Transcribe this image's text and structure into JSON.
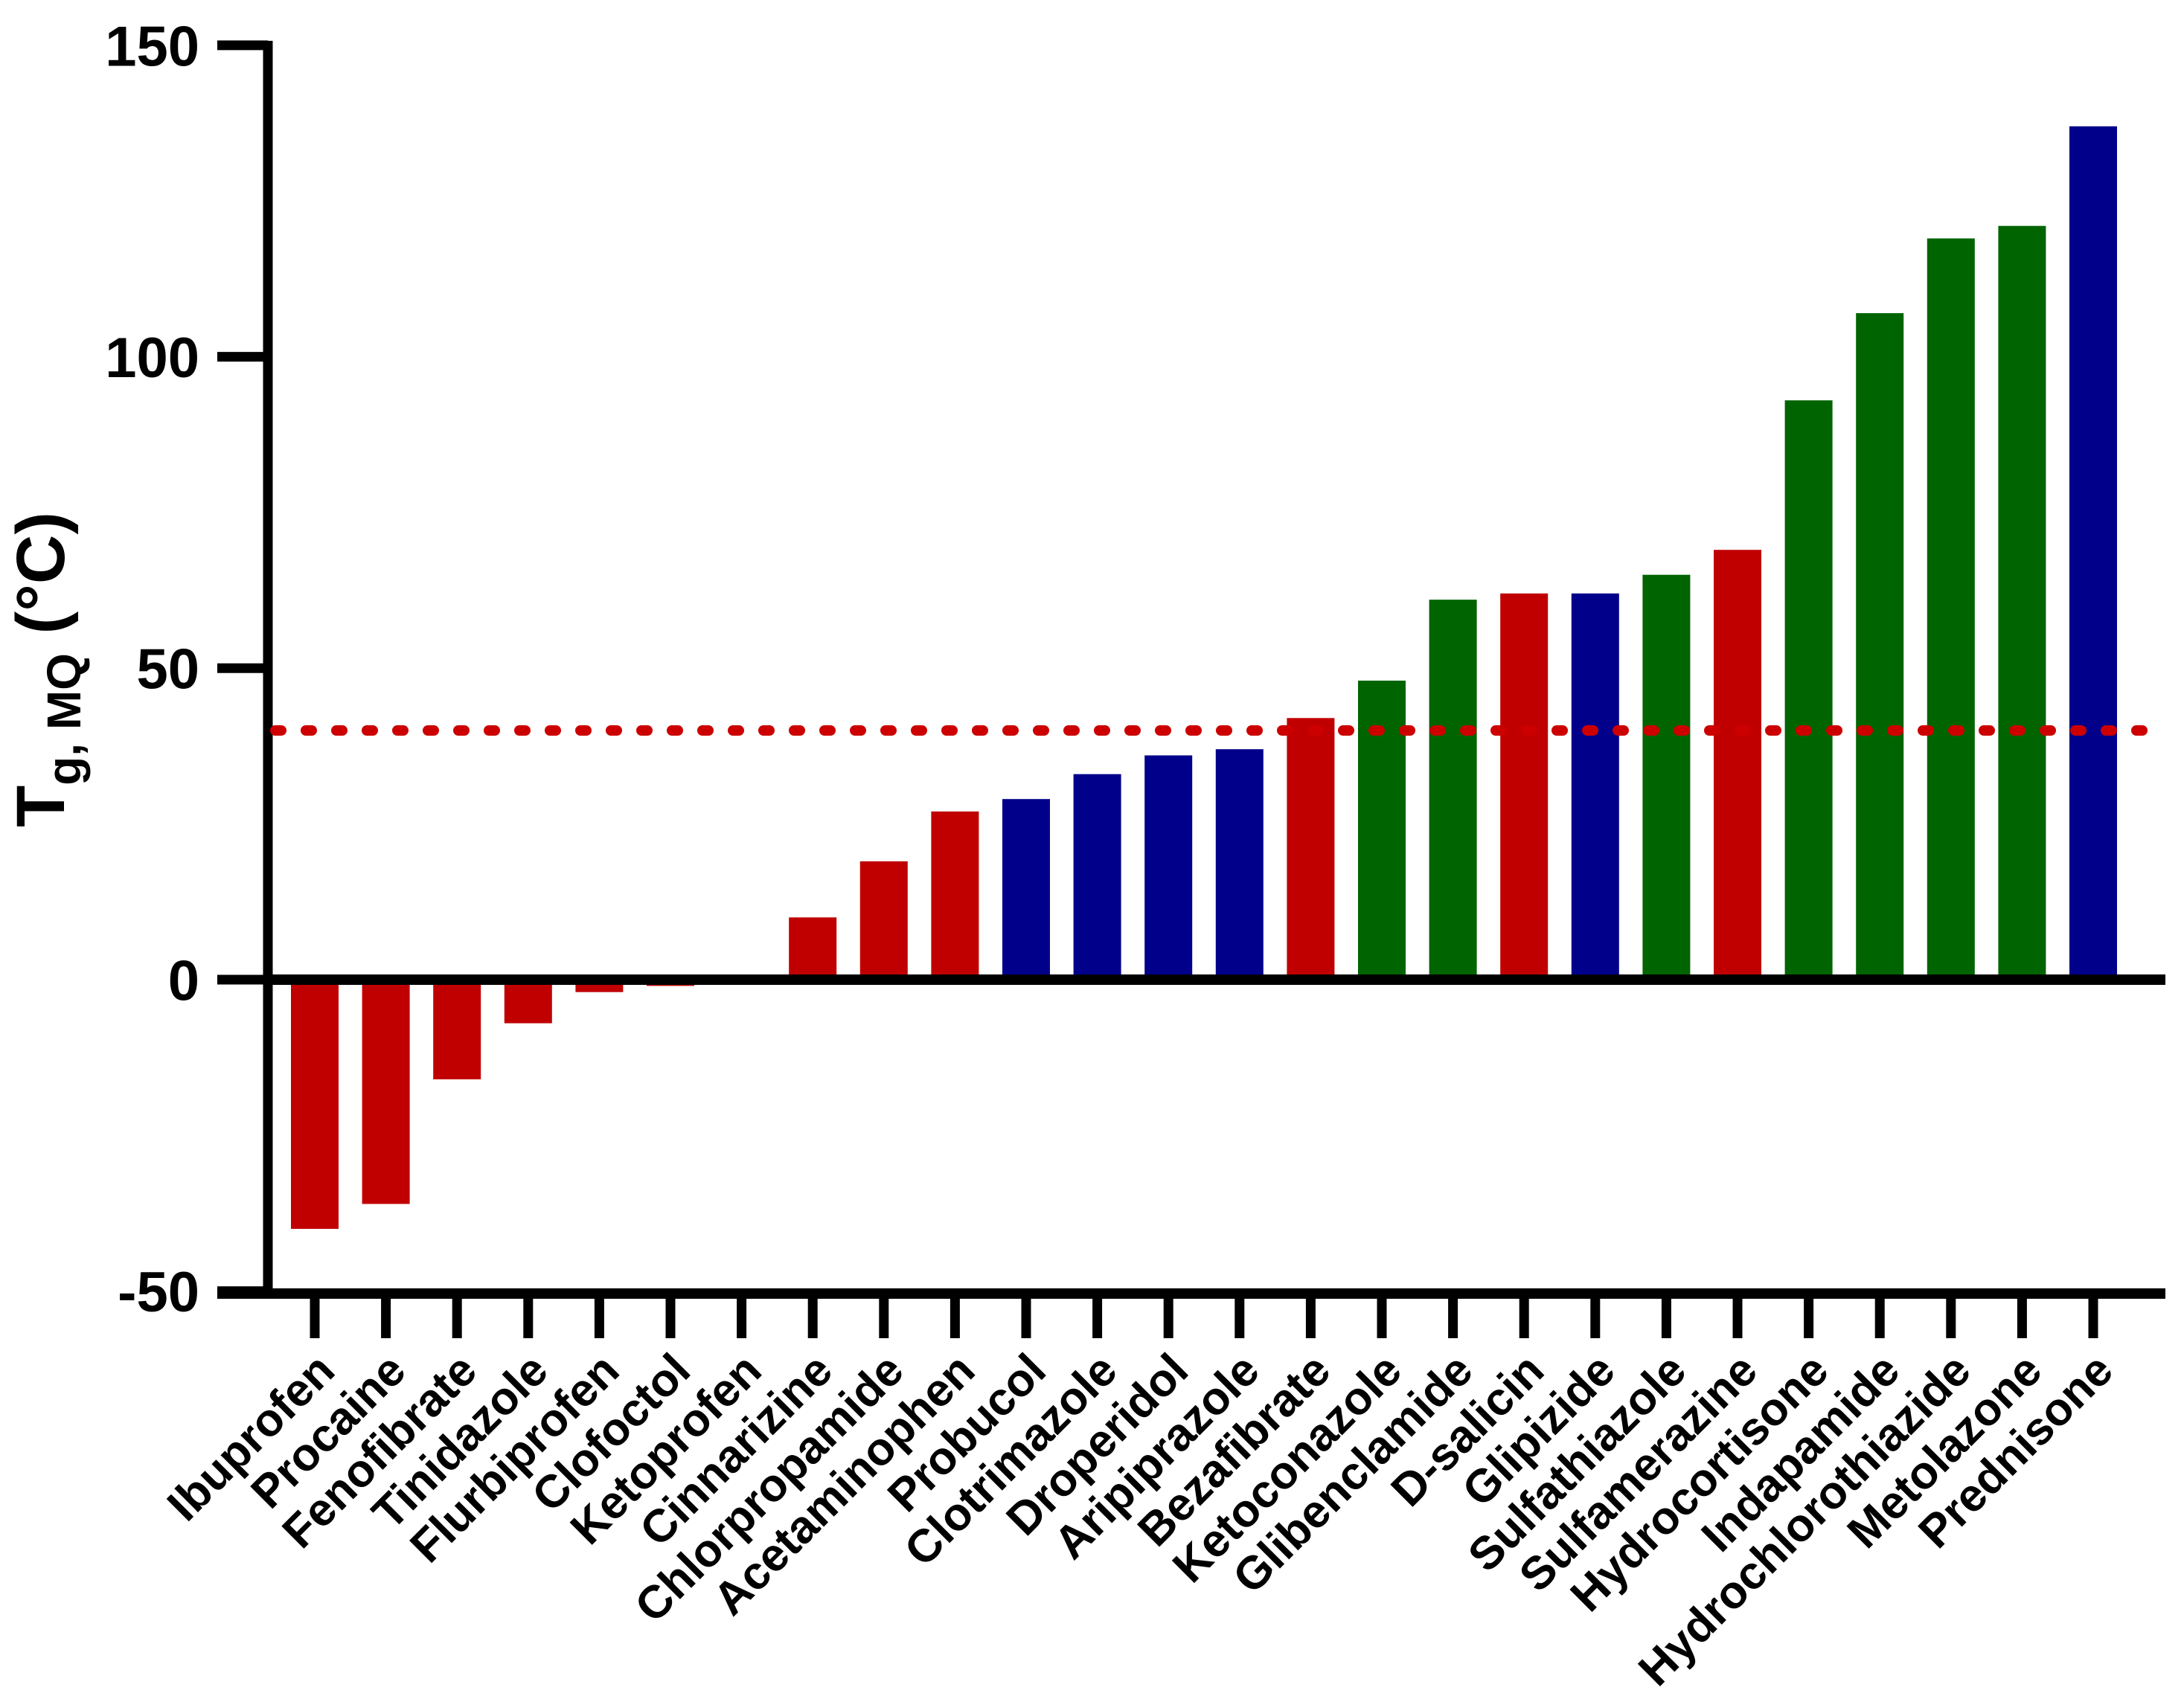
{
  "figure": {
    "background": "#ffffff",
    "axis_color": "#000000",
    "y_axis_title": {
      "main": "T",
      "subscript": "g, MQ",
      "unit": " (°C)"
    },
    "y_tick_labels": [
      "150",
      "100",
      "50",
      "0",
      "-50"
    ]
  },
  "chart_data": {
    "type": "bar",
    "title": "",
    "xlabel": "",
    "ylabel": "Tg, MQ (°C)",
    "ylim": [
      -50,
      150
    ],
    "yticks": [
      150,
      100,
      50,
      0,
      -50
    ],
    "grid": false,
    "legend_position": "none",
    "reference_line": {
      "value": 40,
      "style": "dashed",
      "color": "#cc0000"
    },
    "class_colors": {
      "red": "#c00000",
      "blue": "#00008b",
      "green": "#006400"
    },
    "bars": [
      {
        "label": "Ibuprofen",
        "value": -40,
        "color": "red"
      },
      {
        "label": "Procaine",
        "value": -36,
        "color": "red"
      },
      {
        "label": "Fenofibrate",
        "value": -16,
        "color": "red"
      },
      {
        "label": "Tinidazole",
        "value": -7,
        "color": "red"
      },
      {
        "label": "Flurbiprofen",
        "value": -2,
        "color": "red"
      },
      {
        "label": "Clofoctol",
        "value": -1,
        "color": "red"
      },
      {
        "label": "Ketoprofen",
        "value": 0,
        "color": "red"
      },
      {
        "label": "Cinnarizine",
        "value": 10,
        "color": "red"
      },
      {
        "label": "Chlorpropamide",
        "value": 19,
        "color": "red"
      },
      {
        "label": "Acetaminophen",
        "value": 27,
        "color": "red"
      },
      {
        "label": "Probucol",
        "value": 29,
        "color": "blue"
      },
      {
        "label": "Clotrimazole",
        "value": 33,
        "color": "blue"
      },
      {
        "label": "Droperidol",
        "value": 36,
        "color": "blue"
      },
      {
        "label": "Aripiprazole",
        "value": 37,
        "color": "blue"
      },
      {
        "label": "Bezafibrate",
        "value": 42,
        "color": "red"
      },
      {
        "label": "Ketoconazole",
        "value": 48,
        "color": "green"
      },
      {
        "label": "Glibenclamide",
        "value": 61,
        "color": "green"
      },
      {
        "label": "D-salicin",
        "value": 62,
        "color": "red"
      },
      {
        "label": "Glipizide",
        "value": 62,
        "color": "blue"
      },
      {
        "label": "Sulfathiazole",
        "value": 65,
        "color": "green"
      },
      {
        "label": "Sulfamerazine",
        "value": 69,
        "color": "red"
      },
      {
        "label": "Hydrocortisone",
        "value": 93,
        "color": "green"
      },
      {
        "label": "Indapamide",
        "value": 107,
        "color": "green"
      },
      {
        "label": "Hydrochlorothiazide",
        "value": 119,
        "color": "green"
      },
      {
        "label": "Metolazone",
        "value": 121,
        "color": "green"
      },
      {
        "label": "Prednisone",
        "value": 137,
        "color": "blue"
      }
    ]
  }
}
